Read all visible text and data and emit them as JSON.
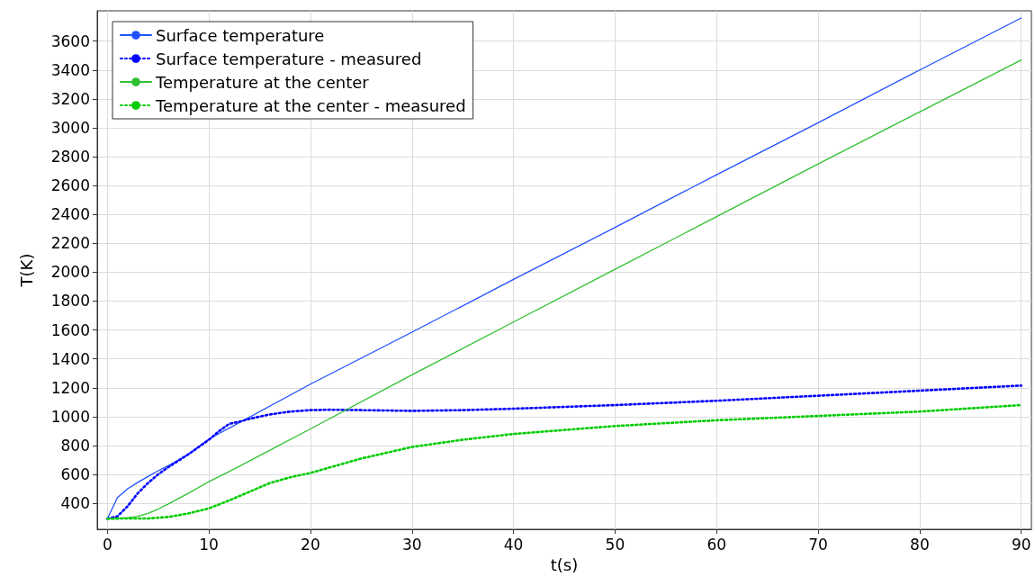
{
  "chart_data": {
    "type": "line",
    "xlabel": "t(s)",
    "ylabel": "T(K)",
    "xlim": [
      -1,
      91
    ],
    "ylim": [
      220,
      3810
    ],
    "xticks": [
      0,
      10,
      20,
      30,
      40,
      50,
      60,
      70,
      80,
      90
    ],
    "yticks": [
      400,
      600,
      800,
      1000,
      1200,
      1400,
      1600,
      1800,
      2000,
      2200,
      2400,
      2600,
      2800,
      3000,
      3200,
      3400,
      3600
    ],
    "grid": true,
    "legend": "top left",
    "marker": "none",
    "series": [
      {
        "name": "Surface temperature",
        "color": "#2050ff",
        "line_style": "solid",
        "x": [
          0,
          1,
          2,
          3,
          4,
          5,
          6,
          7,
          8,
          10,
          20,
          30,
          40,
          50,
          60,
          70,
          80,
          90
        ],
        "values": [
          293,
          440,
          500,
          545,
          585,
          625,
          660,
          700,
          740,
          845,
          1225,
          1585,
          1950,
          2310,
          2675,
          3035,
          3400,
          3760
        ]
      },
      {
        "name": "Surface temperature - measured",
        "color": "#0000ff",
        "line_style": "dotted",
        "x": [
          0,
          1,
          2,
          3,
          4,
          5,
          6,
          8,
          10,
          11,
          12,
          13,
          14,
          16,
          18,
          20,
          22,
          25,
          30,
          35,
          40,
          50,
          60,
          70,
          80,
          90
        ],
        "values": [
          293,
          310,
          380,
          470,
          540,
          600,
          650,
          740,
          840,
          900,
          950,
          965,
          985,
          1015,
          1035,
          1045,
          1048,
          1045,
          1040,
          1045,
          1055,
          1080,
          1110,
          1145,
          1180,
          1215
        ]
      },
      {
        "name": "Temperature at the center",
        "color": "#30c030",
        "line_style": "solid",
        "x": [
          0,
          2,
          3,
          4,
          5,
          6,
          8,
          10,
          12,
          15,
          20,
          30,
          40,
          50,
          60,
          70,
          80,
          90
        ],
        "values": [
          293,
          300,
          310,
          330,
          360,
          395,
          470,
          550,
          620,
          730,
          915,
          1290,
          1655,
          2020,
          2385,
          2750,
          3110,
          3470
        ]
      },
      {
        "name": "Temperature at the center - measured",
        "color": "#00cc00",
        "line_style": "dotted",
        "x": [
          0,
          2,
          4,
          6,
          8,
          10,
          12,
          14,
          16,
          18,
          20,
          25,
          30,
          35,
          40,
          50,
          60,
          70,
          80,
          90
        ],
        "values": [
          293,
          295,
          295,
          305,
          330,
          365,
          420,
          480,
          540,
          580,
          610,
          710,
          790,
          840,
          880,
          935,
          975,
          1005,
          1035,
          1080
        ]
      }
    ]
  }
}
